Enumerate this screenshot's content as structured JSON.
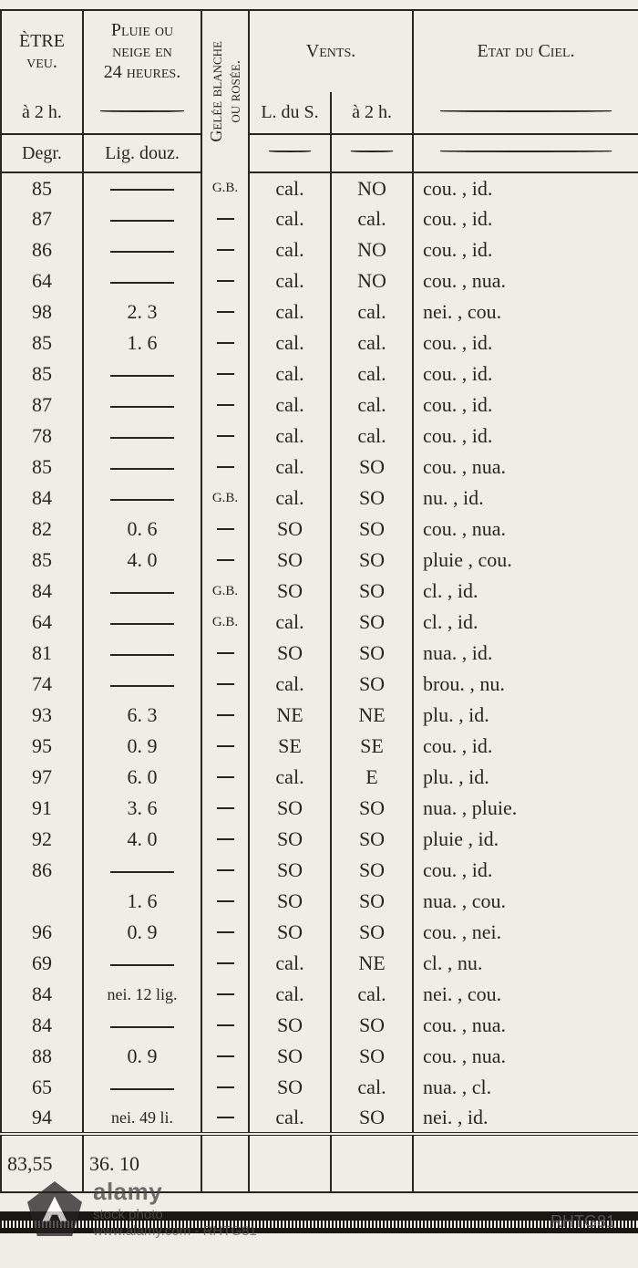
{
  "headers": {
    "col1_line1": "ÈTRE",
    "col1_line2": "veu.",
    "col1_sub": "à 2 h.",
    "col1_unit": "Degr.",
    "col2_line1": "Pluie ou",
    "col2_line2": "neige en",
    "col2_line3": "24 heures.",
    "col2_unit": "Lig. douz.",
    "col3_line1": "Gelée blanche",
    "col3_line2": "ou rosée.",
    "col45_title": "Vents.",
    "col4_sub": "L. du S.",
    "col5_sub": "à 2 h.",
    "col6_title": "Etat du Ciel."
  },
  "rows": [
    {
      "deg": "85",
      "pluie": "",
      "gelee": "G.B.",
      "v1": "cal.",
      "v2": "NO",
      "ciel": "cou. , id."
    },
    {
      "deg": "87",
      "pluie": "",
      "gelee": "",
      "v1": "cal.",
      "v2": "cal.",
      "ciel": "cou. , id."
    },
    {
      "deg": "86",
      "pluie": "",
      "gelee": "",
      "v1": "cal.",
      "v2": "NO",
      "ciel": "cou. , id."
    },
    {
      "deg": "64",
      "pluie": "",
      "gelee": "",
      "v1": "cal.",
      "v2": "NO",
      "ciel": "cou. , nua."
    },
    {
      "deg": "98",
      "pluie": "2.  3",
      "gelee": "",
      "v1": "cal.",
      "v2": "cal.",
      "ciel": "nei. , cou."
    },
    {
      "deg": "85",
      "pluie": "1.  6",
      "gelee": "",
      "v1": "cal.",
      "v2": "cal.",
      "ciel": "cou. , id."
    },
    {
      "deg": "85",
      "pluie": "",
      "gelee": "",
      "v1": "cal.",
      "v2": "cal.",
      "ciel": "cou. , id."
    },
    {
      "deg": "87",
      "pluie": "",
      "gelee": "",
      "v1": "cal.",
      "v2": "cal.",
      "ciel": "cou. , id."
    },
    {
      "deg": "78",
      "pluie": "",
      "gelee": "",
      "v1": "cal.",
      "v2": "cal.",
      "ciel": "cou. , id."
    },
    {
      "deg": "85",
      "pluie": "",
      "gelee": "",
      "v1": "cal.",
      "v2": "SO",
      "ciel": "cou. , nua."
    },
    {
      "deg": "84",
      "pluie": "",
      "gelee": "G.B.",
      "v1": "cal.",
      "v2": "SO",
      "ciel": "nu. , id."
    },
    {
      "deg": "82",
      "pluie": "0.  6",
      "gelee": "",
      "v1": "SO",
      "v2": "SO",
      "ciel": "cou. , nua."
    },
    {
      "deg": "85",
      "pluie": "4.  0",
      "gelee": "",
      "v1": "SO",
      "v2": "SO",
      "ciel": "pluie , cou."
    },
    {
      "deg": "84",
      "pluie": "",
      "gelee": "G.B.",
      "v1": "SO",
      "v2": "SO",
      "ciel": "cl. , id."
    },
    {
      "deg": "64",
      "pluie": "",
      "gelee": "G.B.",
      "v1": "cal.",
      "v2": "SO",
      "ciel": "cl. , id."
    },
    {
      "deg": "81",
      "pluie": "",
      "gelee": "",
      "v1": "SO",
      "v2": "SO",
      "ciel": "nua. , id."
    },
    {
      "deg": "74",
      "pluie": "",
      "gelee": "",
      "v1": "cal.",
      "v2": "SO",
      "ciel": "brou. , nu."
    },
    {
      "deg": "93",
      "pluie": "6.  3",
      "gelee": "",
      "v1": "NE",
      "v2": "NE",
      "ciel": "plu. , id."
    },
    {
      "deg": "95",
      "pluie": "0.  9",
      "gelee": "",
      "v1": "SE",
      "v2": "SE",
      "ciel": "cou. , id."
    },
    {
      "deg": "97",
      "pluie": "6.  0",
      "gelee": "",
      "v1": "cal.",
      "v2": "E",
      "ciel": "plu. , id."
    },
    {
      "deg": "91",
      "pluie": "3.  6",
      "gelee": "",
      "v1": "SO",
      "v2": "SO",
      "ciel": "nua. , pluie."
    },
    {
      "deg": "92",
      "pluie": "4.  0",
      "gelee": "",
      "v1": "SO",
      "v2": "SO",
      "ciel": "pluie , id."
    },
    {
      "deg": "86",
      "pluie": "",
      "gelee": "",
      "v1": "SO",
      "v2": "SO",
      "ciel": "cou. , id."
    },
    {
      "deg": "",
      "pluie": "1.  6",
      "gelee": "",
      "v1": "SO",
      "v2": "SO",
      "ciel": "nua. , cou."
    },
    {
      "deg": "96",
      "pluie": "0.  9",
      "gelee": "",
      "v1": "SO",
      "v2": "SO",
      "ciel": "cou. , nei."
    },
    {
      "deg": "69",
      "pluie": "",
      "gelee": "",
      "v1": "cal.",
      "v2": "NE",
      "ciel": "cl. , nu."
    },
    {
      "deg": "84",
      "pluie_text": "nei. 12 lig.",
      "gelee": "",
      "v1": "cal.",
      "v2": "cal.",
      "ciel": "nei. , cou."
    },
    {
      "deg": "84",
      "pluie": "",
      "gelee": "",
      "v1": "SO",
      "v2": "SO",
      "ciel": "cou. , nua."
    },
    {
      "deg": "88",
      "pluie": "0.  9",
      "gelee": "",
      "v1": "SO",
      "v2": "SO",
      "ciel": "cou. , nua."
    },
    {
      "deg": "65",
      "pluie": "",
      "gelee": "",
      "v1": "SO",
      "v2": "cal.",
      "ciel": "nua. , cl."
    },
    {
      "deg": "94",
      "pluie_text": "nei. 49 li.",
      "gelee": "",
      "v1": "cal.",
      "v2": "SO",
      "ciel": "nei. , id."
    }
  ],
  "footer": {
    "deg": "83,55",
    "pluie": "36.  10"
  },
  "watermark": {
    "brand_line1": "alamy",
    "brand_line2": "stock photo",
    "credit": "www.alamy.com  -  RHTG81",
    "code": "RHTG81"
  }
}
